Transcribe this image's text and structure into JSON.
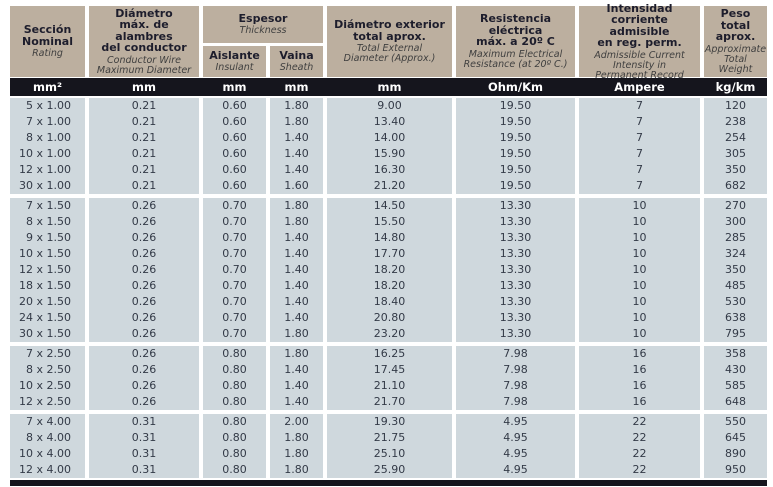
{
  "colors": {
    "header_bg": "#bcaf9f",
    "units_bg": "#15151d",
    "cell_bg": "#cfd8dd",
    "text_dark": "#1d1d2c",
    "subtitle_color": "#3f3f3f",
    "data_text": "#333a47"
  },
  "table": {
    "header": {
      "seccion": {
        "title": "Sección\nNominal",
        "subtitle": "Rating",
        "unit": "mm²"
      },
      "diametro": {
        "title": "Diámetro\nmáx. de alambres\ndel conductor",
        "subtitle": "Conductor Wire\nMaximum Diameter",
        "unit": "mm"
      },
      "espesor": {
        "title": "Espesor",
        "subtitle": "Thickness"
      },
      "aislante": {
        "title": "Aislante",
        "subtitle": "Insulant",
        "unit": "mm"
      },
      "vaina": {
        "title": "Vaina",
        "subtitle": "Sheath",
        "unit": "mm"
      },
      "diam_ext": {
        "title": "Diámetro exterior\ntotal aprox.",
        "subtitle": "Total External\nDiameter (Approx.)",
        "unit": "mm"
      },
      "resistencia": {
        "title": "Resistencia eléctrica\nmáx. a 20º C",
        "subtitle": "Maximum Electrical\nResistance (at 20º C.)",
        "unit": "Ohm/Km"
      },
      "intensidad": {
        "title": "Intensidad\ncorriente admisible\nen reg. perm.",
        "subtitle": "Admissible Current\nIntensity in\nPermanent Record",
        "unit": "Ampere"
      },
      "peso": {
        "title": "Peso total\naprox.",
        "subtitle": "Approximate\nTotal\nWeight",
        "unit": "kg/km"
      }
    },
    "groups": [
      {
        "rows": [
          [
            "5 x 1.00",
            "0.21",
            "0.60",
            "1.80",
            "9.00",
            "19.50",
            "7",
            "120"
          ],
          [
            "7 x 1.00",
            "0.21",
            "0.60",
            "1.80",
            "13.40",
            "19.50",
            "7",
            "238"
          ],
          [
            "8 x 1.00",
            "0.21",
            "0.60",
            "1.40",
            "14.00",
            "19.50",
            "7",
            "254"
          ],
          [
            "10 x 1.00",
            "0.21",
            "0.60",
            "1.40",
            "15.90",
            "19.50",
            "7",
            "305"
          ],
          [
            "12 x 1.00",
            "0.21",
            "0.60",
            "1.40",
            "16.30",
            "19.50",
            "7",
            "350"
          ],
          [
            "30 x 1.00",
            "0.21",
            "0.60",
            "1.60",
            "21.20",
            "19.50",
            "7",
            "682"
          ]
        ]
      },
      {
        "rows": [
          [
            "7 x 1.50",
            "0.26",
            "0.70",
            "1.80",
            "14.50",
            "13.30",
            "10",
            "270"
          ],
          [
            "8 x 1.50",
            "0.26",
            "0.70",
            "1.80",
            "15.50",
            "13.30",
            "10",
            "300"
          ],
          [
            "9 x 1.50",
            "0.26",
            "0.70",
            "1.40",
            "14.80",
            "13.30",
            "10",
            "285"
          ],
          [
            "10 x 1.50",
            "0.26",
            "0.70",
            "1.40",
            "17.70",
            "13.30",
            "10",
            "324"
          ],
          [
            "12 x 1.50",
            "0.26",
            "0.70",
            "1.40",
            "18.20",
            "13.30",
            "10",
            "350"
          ],
          [
            "18 x 1.50",
            "0.26",
            "0.70",
            "1.40",
            "18.20",
            "13.30",
            "10",
            "485"
          ],
          [
            "20 x 1.50",
            "0.26",
            "0.70",
            "1.40",
            "18.40",
            "13.30",
            "10",
            "530"
          ],
          [
            "24 x 1.50",
            "0.26",
            "0.70",
            "1.40",
            "20.80",
            "13.30",
            "10",
            "638"
          ],
          [
            "30 x 1.50",
            "0.26",
            "0.70",
            "1.80",
            "23.20",
            "13.30",
            "10",
            "795"
          ]
        ]
      },
      {
        "rows": [
          [
            "7 x 2.50",
            "0.26",
            "0.80",
            "1.80",
            "16.25",
            "7.98",
            "16",
            "358"
          ],
          [
            "8 x 2.50",
            "0.26",
            "0.80",
            "1.40",
            "17.45",
            "7.98",
            "16",
            "430"
          ],
          [
            "10 x 2.50",
            "0.26",
            "0.80",
            "1.40",
            "21.10",
            "7.98",
            "16",
            "585"
          ],
          [
            "12 x 2.50",
            "0.26",
            "0.80",
            "1.40",
            "21.70",
            "7.98",
            "16",
            "648"
          ]
        ]
      },
      {
        "rows": [
          [
            "7 x 4.00",
            "0.31",
            "0.80",
            "2.00",
            "19.30",
            "4.95",
            "22",
            "550"
          ],
          [
            "8 x 4.00",
            "0.31",
            "0.80",
            "1.80",
            "21.75",
            "4.95",
            "22",
            "645"
          ],
          [
            "10 x 4.00",
            "0.31",
            "0.80",
            "1.80",
            "25.10",
            "4.95",
            "22",
            "890"
          ],
          [
            "12 x 4.00",
            "0.31",
            "0.80",
            "1.80",
            "25.90",
            "4.95",
            "22",
            "950"
          ]
        ]
      }
    ]
  }
}
